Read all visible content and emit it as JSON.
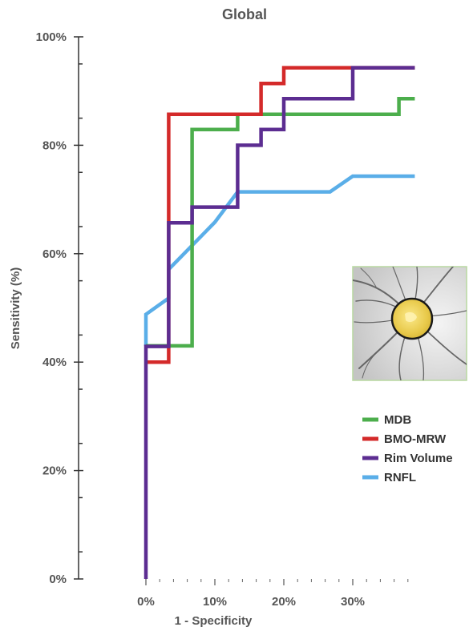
{
  "chart_data": {
    "type": "line",
    "title": "Global",
    "xlabel": "1 - Specificity",
    "ylabel": "Sensitivity (%)",
    "xlim": [
      0,
      39
    ],
    "ylim": [
      0,
      100
    ],
    "x_ticks": [
      {
        "value": 0,
        "label": "0%"
      },
      {
        "value": 10,
        "label": "10%"
      },
      {
        "value": 20,
        "label": "20%"
      },
      {
        "value": 30,
        "label": "30%"
      }
    ],
    "y_ticks": [
      {
        "value": 0,
        "label": "0%"
      },
      {
        "value": 20,
        "label": "20%"
      },
      {
        "value": 40,
        "label": "40%"
      },
      {
        "value": 60,
        "label": "60%"
      },
      {
        "value": 80,
        "label": "80%"
      },
      {
        "value": 100,
        "label": "100%"
      }
    ],
    "legend_position": "right",
    "series": [
      {
        "name": "RNFL",
        "color": "#5aaee8",
        "points": [
          [
            0,
            43
          ],
          [
            0,
            48.8
          ],
          [
            3.3,
            51.8
          ],
          [
            3.3,
            57.1
          ],
          [
            10,
            65.8
          ],
          [
            13.3,
            71.4
          ],
          [
            26.7,
            71.4
          ],
          [
            30,
            74.3
          ],
          [
            39,
            74.3
          ]
        ]
      },
      {
        "name": "MDB",
        "color": "#4cae4c",
        "points": [
          [
            0,
            43
          ],
          [
            6.7,
            43
          ],
          [
            6.7,
            82.9
          ],
          [
            13.3,
            82.9
          ],
          [
            13.3,
            85.7
          ],
          [
            36.7,
            85.7
          ],
          [
            36.7,
            88.6
          ],
          [
            39,
            88.6
          ]
        ]
      },
      {
        "name": "BMO-MRW",
        "color": "#d42a2a",
        "points": [
          [
            0,
            40
          ],
          [
            3.3,
            40
          ],
          [
            3.3,
            85.7
          ],
          [
            16.7,
            85.7
          ],
          [
            16.7,
            91.4
          ],
          [
            20,
            91.4
          ],
          [
            20,
            94.3
          ],
          [
            39,
            94.3
          ]
        ]
      },
      {
        "name": "Rim Volume",
        "color": "#5c2d91",
        "points": [
          [
            0,
            0
          ],
          [
            0,
            42.9
          ],
          [
            3.3,
            42.9
          ],
          [
            3.3,
            65.7
          ],
          [
            6.7,
            65.7
          ],
          [
            6.7,
            68.6
          ],
          [
            13.3,
            68.6
          ],
          [
            13.3,
            80
          ],
          [
            16.7,
            80
          ],
          [
            16.7,
            82.9
          ],
          [
            20,
            82.9
          ],
          [
            20,
            88.6
          ],
          [
            30,
            88.6
          ],
          [
            30,
            94.3
          ],
          [
            39,
            94.3
          ]
        ]
      }
    ],
    "legend": [
      {
        "name": "MDB",
        "color": "#4cae4c"
      },
      {
        "name": "BMO-MRW",
        "color": "#d42a2a"
      },
      {
        "name": "Rim Volume",
        "color": "#5c2d91"
      },
      {
        "name": "RNFL",
        "color": "#5aaee8"
      }
    ]
  }
}
